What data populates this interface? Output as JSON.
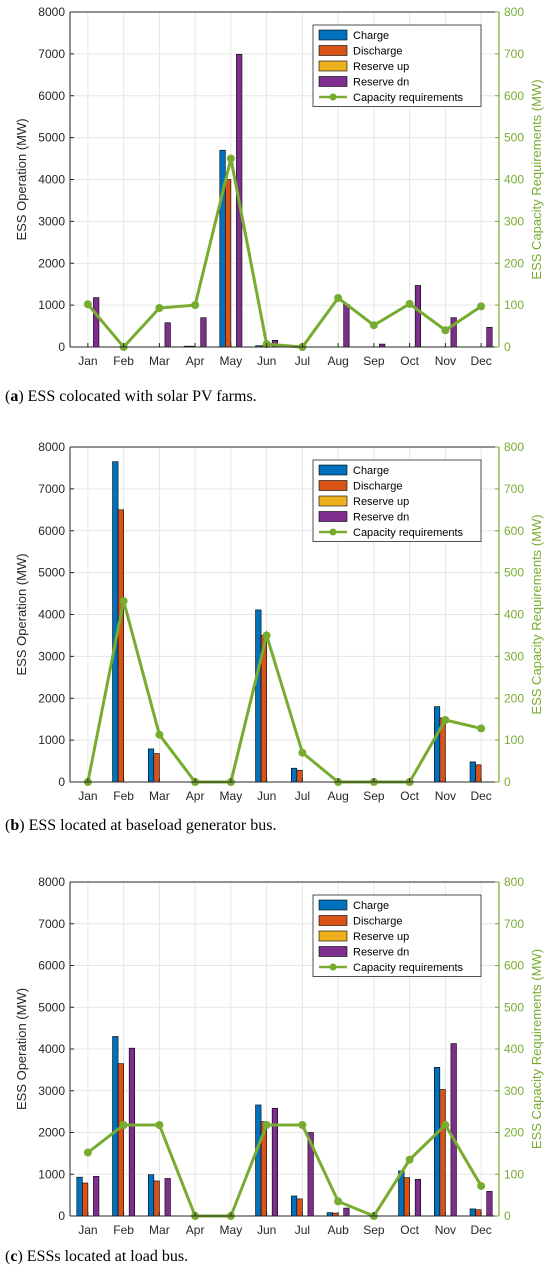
{
  "colors": {
    "charge": "#0072BD",
    "discharge": "#D95319",
    "reserve_up": "#EDB120",
    "reserve_dn": "#7E2F8E",
    "capacity": "#77AC30",
    "grid": "#e6e6e6"
  },
  "panels": [
    {
      "caption_letter": "a",
      "caption_text": "ESS colocated with solar PV farms."
    },
    {
      "caption_letter": "b",
      "caption_text": "ESS located at baseload generator bus."
    },
    {
      "caption_letter": "c",
      "caption_text": "ESSs located at load bus."
    }
  ],
  "chart_data": [
    {
      "type": "bar",
      "ylabel": "ESS Operation (MW)",
      "y2label": "ESS Capacity Requirements (MW)",
      "ylim": [
        0,
        8000
      ],
      "y2lim": [
        0,
        800
      ],
      "yticks": [
        "0",
        "1000",
        "2000",
        "3000",
        "4000",
        "5000",
        "6000",
        "7000",
        "8000"
      ],
      "y2ticks": [
        "0",
        "100",
        "200",
        "300",
        "400",
        "500",
        "600",
        "700",
        "800"
      ],
      "grid": true,
      "legend_position": "top-right",
      "categories": [
        "Jan",
        "Feb",
        "Mar",
        "Apr",
        "May",
        "Jun",
        "Jul",
        "Aug",
        "Sep",
        "Oct",
        "Nov",
        "Dec"
      ],
      "series": [
        {
          "name": "Charge",
          "values": [
            0,
            0,
            0,
            20,
            4700,
            30,
            0,
            0,
            0,
            0,
            0,
            0
          ]
        },
        {
          "name": "Discharge",
          "values": [
            0,
            0,
            0,
            20,
            4000,
            30,
            0,
            0,
            0,
            0,
            0,
            0
          ]
        },
        {
          "name": "Reserve up",
          "values": [
            0,
            0,
            0,
            0,
            0,
            0,
            0,
            0,
            0,
            0,
            0,
            0
          ]
        },
        {
          "name": "Reserve dn",
          "values": [
            1180,
            0,
            580,
            700,
            6990,
            160,
            0,
            1020,
            70,
            1470,
            700,
            470
          ]
        }
      ],
      "line": {
        "name": "Capacity requirements",
        "axis": "right",
        "values": [
          102,
          0,
          93,
          100,
          450,
          7,
          0,
          117,
          52,
          103,
          40,
          97
        ]
      }
    },
    {
      "type": "bar",
      "ylabel": "ESS Operation (MW)",
      "y2label": "ESS Capacity Requirements (MW)",
      "ylim": [
        0,
        8000
      ],
      "y2lim": [
        0,
        800
      ],
      "yticks": [
        "0",
        "1000",
        "2000",
        "3000",
        "4000",
        "5000",
        "6000",
        "7000",
        "8000"
      ],
      "y2ticks": [
        "0",
        "100",
        "200",
        "300",
        "400",
        "500",
        "600",
        "700",
        "800"
      ],
      "grid": true,
      "legend_position": "top-right",
      "categories": [
        "Jan",
        "Feb",
        "Mar",
        "Apr",
        "May",
        "Jun",
        "Jul",
        "Aug",
        "Sep",
        "Oct",
        "Nov",
        "Dec"
      ],
      "series": [
        {
          "name": "Charge",
          "values": [
            0,
            7650,
            790,
            0,
            0,
            4110,
            330,
            0,
            0,
            0,
            1800,
            480
          ]
        },
        {
          "name": "Discharge",
          "values": [
            0,
            6500,
            680,
            0,
            0,
            3500,
            280,
            0,
            0,
            0,
            1530,
            410
          ]
        },
        {
          "name": "Reserve up",
          "values": [
            0,
            0,
            0,
            0,
            0,
            0,
            0,
            0,
            0,
            0,
            0,
            0
          ]
        },
        {
          "name": "Reserve dn",
          "values": [
            0,
            0,
            0,
            0,
            0,
            0,
            0,
            0,
            0,
            0,
            0,
            0
          ]
        }
      ],
      "line": {
        "name": "Capacity requirements",
        "axis": "right",
        "values": [
          0,
          432,
          113,
          0,
          0,
          350,
          70,
          0,
          0,
          0,
          148,
          128
        ]
      }
    },
    {
      "type": "bar",
      "ylabel": "ESS Operation (MW)",
      "y2label": "ESS Capacity Requirements (MW)",
      "ylim": [
        0,
        8000
      ],
      "y2lim": [
        0,
        800
      ],
      "yticks": [
        "0",
        "1000",
        "2000",
        "3000",
        "4000",
        "5000",
        "6000",
        "7000",
        "8000"
      ],
      "y2ticks": [
        "0",
        "100",
        "200",
        "300",
        "400",
        "500",
        "600",
        "700",
        "800"
      ],
      "grid": true,
      "legend_position": "top-right",
      "categories": [
        "Jan",
        "Feb",
        "Mar",
        "Apr",
        "May",
        "Jun",
        "Jul",
        "Aub",
        "Sep",
        "Oct",
        "Nov",
        "Dec"
      ],
      "series": [
        {
          "name": "Charge",
          "values": [
            930,
            4300,
            990,
            0,
            0,
            2660,
            480,
            80,
            0,
            1080,
            3560,
            170
          ]
        },
        {
          "name": "Discharge",
          "values": [
            790,
            3650,
            840,
            0,
            0,
            2260,
            410,
            70,
            0,
            920,
            3030,
            150
          ]
        },
        {
          "name": "Reserve up",
          "values": [
            0,
            0,
            0,
            0,
            0,
            0,
            0,
            0,
            0,
            0,
            0,
            0
          ]
        },
        {
          "name": "Reserve dn",
          "values": [
            950,
            4020,
            900,
            0,
            0,
            2580,
            2000,
            190,
            0,
            880,
            4130,
            590
          ]
        }
      ],
      "line": {
        "name": "Capacity requirements",
        "axis": "right",
        "values": [
          152,
          218,
          218,
          0,
          0,
          218,
          218,
          35,
          0,
          135,
          218,
          72
        ]
      }
    }
  ]
}
